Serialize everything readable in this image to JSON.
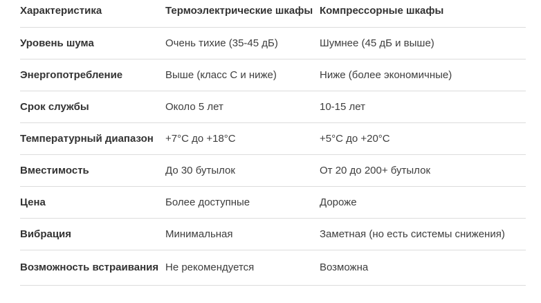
{
  "table": {
    "columns": [
      "Характеристика",
      "Термоэлектрические шкафы",
      "Компрессорные шкафы"
    ],
    "rows": [
      {
        "feature": "Уровень шума",
        "thermoelectric": "Очень тихие (35-45 дБ)",
        "compressor": "Шумнее (45 дБ и выше)"
      },
      {
        "feature": "Энергопотребление",
        "thermoelectric": "Выше (класс C и ниже)",
        "compressor": "Ниже (более экономичные)"
      },
      {
        "feature": "Срок службы",
        "thermoelectric": "Около 5 лет",
        "compressor": "10-15 лет"
      },
      {
        "feature": "Температурный диапазон",
        "thermoelectric": "+7°C до +18°C",
        "compressor": "+5°C до +20°C"
      },
      {
        "feature": "Вместимость",
        "thermoelectric": "До 30 бутылок",
        "compressor": "От 20 до 200+ бутылок"
      },
      {
        "feature": "Цена",
        "thermoelectric": "Более доступные",
        "compressor": "Дороже"
      },
      {
        "feature": "Вибрация",
        "thermoelectric": "Минимальная",
        "compressor": "Заметная (но есть системы снижения)"
      },
      {
        "feature": "Возможность встраивания",
        "thermoelectric": "Не рекомендуется",
        "compressor": "Возможна"
      }
    ],
    "colors": {
      "header_text": "#333333",
      "body_text": "#3d3d3d",
      "divider": "#dcdcdc",
      "background": "#ffffff"
    }
  }
}
